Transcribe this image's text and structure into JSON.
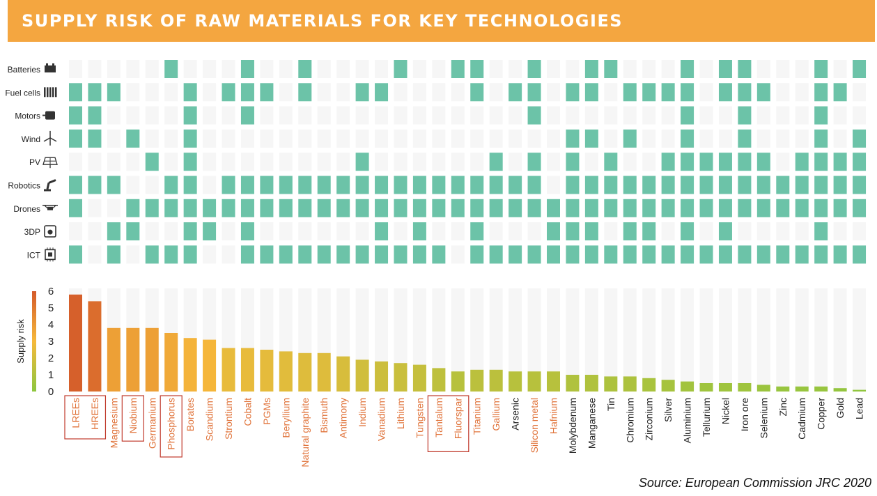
{
  "title": "SUPPLY RISK OF RAW MATERIALS FOR KEY TECHNOLOGIES",
  "source": "Source: European Commission JRC 2020",
  "colors": {
    "banner": "#f4a640",
    "matrix_on": "#6cc3a8",
    "matrix_off": "#f6f6f6",
    "highlight_box": "#c0392b",
    "label_critical": "#e0733a",
    "label_other": "#222222",
    "scale_low": "#8dc63f",
    "scale_mid": "#f6b93b",
    "scale_high": "#d45a2a"
  },
  "technologies": [
    {
      "name": "Batteries",
      "icon": "battery-icon"
    },
    {
      "name": "Fuel cells",
      "icon": "fuel-cell-icon"
    },
    {
      "name": "Motors",
      "icon": "motor-icon"
    },
    {
      "name": "Wind",
      "icon": "wind-turbine-icon"
    },
    {
      "name": "PV",
      "icon": "solar-panel-icon"
    },
    {
      "name": "Robotics",
      "icon": "robot-arm-icon"
    },
    {
      "name": "Drones",
      "icon": "drone-icon"
    },
    {
      "name": "3DP",
      "icon": "3d-printer-icon"
    },
    {
      "name": "ICT",
      "icon": "chip-icon"
    }
  ],
  "chart_data": {
    "type": "bar",
    "ylabel": "Supply risk",
    "ylim": [
      0,
      6
    ],
    "yticks": [
      0,
      1,
      2,
      3,
      4,
      5,
      6
    ],
    "categories": [
      "LREEs",
      "HREEs",
      "Magnesium",
      "Niobium",
      "Germanium",
      "Phosphorus",
      "Borates",
      "Scandium",
      "Strontium",
      "Cobalt",
      "PGMs",
      "Beryllium",
      "Natural graphite",
      "Bismuth",
      "Antimony",
      "Indium",
      "Vanadium",
      "Lithium",
      "Tungsten",
      "Tantalum",
      "Fluorspar",
      "Titanium",
      "Gallium",
      "Arsenic",
      "Silicon metal",
      "Hafnium",
      "Molybdenum",
      "Manganese",
      "Tin",
      "Chromium",
      "Zirconium",
      "Silver",
      "Aluminium",
      "Tellurium",
      "Nickel",
      "Iron ore",
      "Selenium",
      "Zinc",
      "Cadmium",
      "Copper",
      "Gold",
      "Lead"
    ],
    "values": [
      5.8,
      5.4,
      3.8,
      3.8,
      3.8,
      3.5,
      3.2,
      3.1,
      2.6,
      2.6,
      2.5,
      2.4,
      2.3,
      2.3,
      2.1,
      1.9,
      1.8,
      1.7,
      1.6,
      1.4,
      1.2,
      1.3,
      1.3,
      1.2,
      1.2,
      1.2,
      1.0,
      1.0,
      0.9,
      0.9,
      0.8,
      0.7,
      0.6,
      0.5,
      0.5,
      0.5,
      0.4,
      0.3,
      0.3,
      0.3,
      0.2,
      0.1
    ],
    "critical": [
      true,
      true,
      true,
      true,
      true,
      true,
      true,
      true,
      true,
      true,
      true,
      true,
      true,
      true,
      true,
      true,
      true,
      true,
      true,
      true,
      true,
      true,
      true,
      false,
      true,
      true,
      false,
      false,
      false,
      false,
      false,
      false,
      false,
      false,
      false,
      false,
      false,
      false,
      false,
      false,
      false,
      false
    ],
    "highlighted": [
      "LREEs",
      "HREEs",
      "Niobium",
      "Phosphorus",
      "Tantalum",
      "Fluorspar"
    ],
    "matrix": [
      [
        0,
        0,
        0,
        0,
        0,
        1,
        0,
        0,
        0,
        1,
        0,
        0,
        1,
        0,
        0,
        0,
        0,
        1,
        0,
        0,
        1,
        1,
        0,
        0,
        1,
        0,
        0,
        1,
        1,
        0,
        0,
        0,
        1,
        0,
        1,
        1,
        0,
        0,
        0,
        1,
        0,
        1
      ],
      [
        1,
        1,
        1,
        0,
        0,
        0,
        1,
        0,
        1,
        1,
        1,
        0,
        1,
        0,
        0,
        1,
        1,
        0,
        0,
        0,
        0,
        1,
        0,
        1,
        1,
        0,
        1,
        1,
        0,
        1,
        1,
        1,
        1,
        0,
        1,
        1,
        1,
        0,
        0,
        1,
        1,
        0
      ],
      [
        1,
        1,
        0,
        0,
        0,
        0,
        1,
        0,
        0,
        1,
        0,
        0,
        0,
        0,
        0,
        0,
        0,
        0,
        0,
        0,
        0,
        0,
        0,
        0,
        1,
        0,
        0,
        0,
        0,
        0,
        0,
        0,
        1,
        0,
        0,
        1,
        0,
        0,
        0,
        1,
        0,
        0
      ],
      [
        1,
        1,
        0,
        1,
        0,
        0,
        1,
        0,
        0,
        0,
        0,
        0,
        0,
        0,
        0,
        0,
        0,
        0,
        0,
        0,
        0,
        0,
        0,
        0,
        0,
        0,
        1,
        1,
        0,
        1,
        0,
        0,
        1,
        0,
        0,
        1,
        0,
        0,
        0,
        1,
        0,
        1
      ],
      [
        0,
        0,
        0,
        0,
        1,
        0,
        1,
        0,
        0,
        0,
        0,
        0,
        0,
        0,
        0,
        1,
        0,
        0,
        0,
        0,
        0,
        0,
        1,
        0,
        1,
        0,
        1,
        0,
        1,
        0,
        0,
        1,
        1,
        1,
        1,
        1,
        1,
        0,
        1,
        1,
        1,
        1
      ],
      [
        1,
        1,
        1,
        0,
        0,
        1,
        1,
        0,
        1,
        1,
        1,
        1,
        1,
        1,
        1,
        1,
        1,
        1,
        1,
        1,
        1,
        1,
        1,
        1,
        1,
        0,
        1,
        1,
        1,
        1,
        1,
        1,
        1,
        1,
        1,
        1,
        1,
        1,
        1,
        1,
        1,
        1
      ],
      [
        1,
        0,
        0,
        1,
        1,
        1,
        1,
        1,
        1,
        1,
        1,
        1,
        1,
        1,
        1,
        1,
        1,
        1,
        1,
        1,
        1,
        1,
        1,
        1,
        1,
        1,
        1,
        1,
        1,
        1,
        1,
        1,
        1,
        1,
        1,
        1,
        1,
        1,
        1,
        1,
        1,
        1
      ],
      [
        0,
        0,
        1,
        1,
        0,
        0,
        1,
        1,
        0,
        1,
        0,
        0,
        0,
        0,
        0,
        0,
        1,
        0,
        1,
        0,
        0,
        1,
        0,
        0,
        0,
        1,
        1,
        1,
        0,
        1,
        1,
        0,
        1,
        0,
        1,
        0,
        0,
        0,
        0,
        1,
        0,
        0
      ],
      [
        1,
        0,
        1,
        0,
        1,
        1,
        1,
        0,
        0,
        1,
        1,
        1,
        1,
        1,
        1,
        1,
        1,
        1,
        1,
        1,
        0,
        1,
        1,
        1,
        1,
        1,
        1,
        1,
        1,
        1,
        1,
        1,
        1,
        1,
        1,
        1,
        1,
        1,
        1,
        1,
        1,
        1
      ]
    ]
  }
}
